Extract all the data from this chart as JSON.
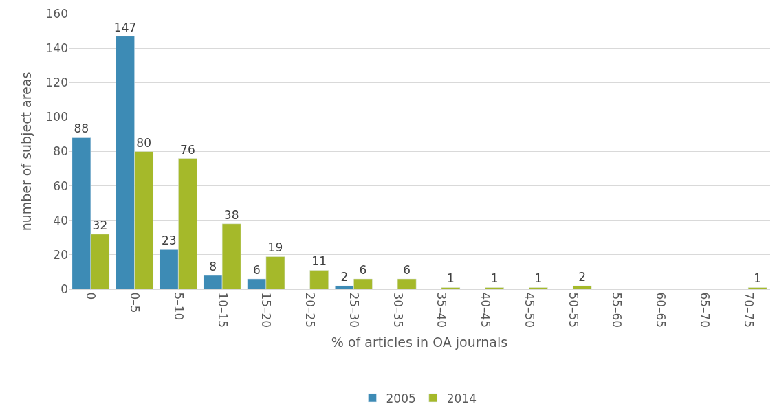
{
  "chart_data": {
    "type": "bar",
    "xlabel": "% of articles in OA journals",
    "ylabel": "number of subject areas",
    "categories": [
      "0",
      "0–5",
      "5–10",
      "10–15",
      "15–20",
      "20–25",
      "25–30",
      "30–35",
      "35–40",
      "40–45",
      "45–50",
      "50–55",
      "55–60",
      "60–65",
      "65–70",
      "70–75"
    ],
    "series": [
      {
        "name": "2005",
        "color": "#3d8bb5",
        "values": [
          88,
          147,
          23,
          8,
          6,
          null,
          2,
          null,
          null,
          null,
          null,
          null,
          null,
          null,
          null,
          null
        ],
        "value_labels": [
          "88",
          "147",
          "23",
          "8",
          "6",
          null,
          "2",
          null,
          null,
          null,
          null,
          null,
          null,
          null,
          null,
          null
        ]
      },
      {
        "name": "2014",
        "color": "#a5b92a",
        "values": [
          32,
          80,
          76,
          38,
          19,
          11,
          6,
          6,
          1,
          1,
          1,
          2,
          null,
          null,
          null,
          1
        ],
        "value_labels": [
          "32",
          "80",
          "76",
          "38",
          "19",
          "11",
          "6",
          "6",
          "1",
          "1",
          "1",
          "2",
          null,
          null,
          null,
          "1"
        ]
      }
    ],
    "ylim": [
      0,
      160
    ],
    "yticks": [
      0,
      20,
      40,
      60,
      80,
      100,
      120,
      140,
      160
    ],
    "grid": "y",
    "legend": "bottom"
  }
}
